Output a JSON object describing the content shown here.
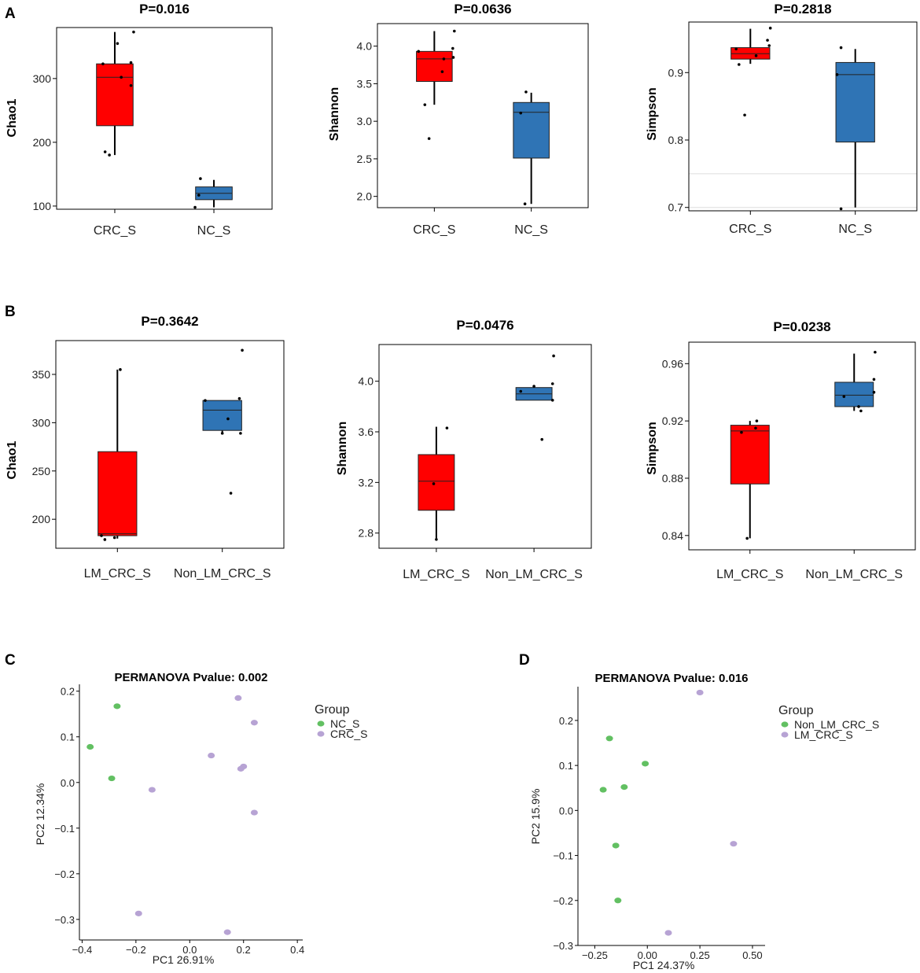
{
  "colors": {
    "red_box": "#ff0000",
    "blue_box": "#2f74b5",
    "green_point": "#62c062",
    "purple_point": "#b7a3d4"
  },
  "panel_letters": {
    "A": "A",
    "B": "B",
    "C": "C",
    "D": "D"
  },
  "chart_data": [
    {
      "id": "A1",
      "type": "box",
      "panel": "A",
      "title": "P=0.016",
      "ylabel": "Chao1",
      "categories": [
        "CRC_S",
        "NC_S"
      ],
      "ylim": [
        95,
        380
      ],
      "yticks": [
        100,
        200,
        300
      ],
      "boxes": [
        {
          "whisker_low": 180,
          "q1": 226,
          "median": 302,
          "q3": 323,
          "whisker_high": 373,
          "color": "red"
        },
        {
          "whisker_low": 98,
          "q1": 110,
          "median": 120,
          "q3": 130,
          "whisker_high": 141,
          "color": "blue"
        }
      ],
      "points": [
        {
          "cat": 0,
          "offset": -0.22,
          "y": 323
        },
        {
          "cat": 0,
          "offset": -0.18,
          "y": 185
        },
        {
          "cat": 0,
          "offset": -0.1,
          "y": 180
        },
        {
          "cat": 0,
          "offset": 0.05,
          "y": 355
        },
        {
          "cat": 0,
          "offset": 0.12,
          "y": 302
        },
        {
          "cat": 0,
          "offset": 0.3,
          "y": 325
        },
        {
          "cat": 0,
          "offset": 0.3,
          "y": 289
        },
        {
          "cat": 0,
          "offset": 0.35,
          "y": 373
        },
        {
          "cat": 1,
          "offset": -0.35,
          "y": 98
        },
        {
          "cat": 1,
          "offset": -0.28,
          "y": 117
        },
        {
          "cat": 1,
          "offset": -0.25,
          "y": 143
        }
      ]
    },
    {
      "id": "A2",
      "type": "box",
      "panel": "A",
      "title": "P=0.0636",
      "ylabel": "Shannon",
      "categories": [
        "CRC_S",
        "NC_S"
      ],
      "ylim": [
        1.85,
        4.3
      ],
      "yticks": [
        2.0,
        2.5,
        3.0,
        3.5,
        4.0
      ],
      "boxes": [
        {
          "whisker_low": 3.22,
          "q1": 3.53,
          "median": 3.83,
          "q3": 3.93,
          "whisker_high": 4.2,
          "color": "red"
        },
        {
          "whisker_low": 1.9,
          "q1": 2.51,
          "median": 3.12,
          "q3": 3.25,
          "whisker_high": 3.38,
          "color": "blue"
        }
      ],
      "points": [
        {
          "cat": 0,
          "offset": -0.3,
          "y": 3.93
        },
        {
          "cat": 0,
          "offset": -0.18,
          "y": 3.22
        },
        {
          "cat": 0,
          "offset": -0.1,
          "y": 2.77
        },
        {
          "cat": 0,
          "offset": 0.15,
          "y": 3.66
        },
        {
          "cat": 0,
          "offset": 0.18,
          "y": 3.83
        },
        {
          "cat": 0,
          "offset": 0.35,
          "y": 3.97
        },
        {
          "cat": 0,
          "offset": 0.36,
          "y": 3.85
        },
        {
          "cat": 0,
          "offset": 0.38,
          "y": 4.2
        },
        {
          "cat": 1,
          "offset": -0.2,
          "y": 3.11
        },
        {
          "cat": 1,
          "offset": -0.12,
          "y": 1.9
        },
        {
          "cat": 1,
          "offset": -0.1,
          "y": 3.39
        }
      ]
    },
    {
      "id": "A3",
      "type": "box",
      "panel": "A",
      "title": "P=0.2818",
      "ylabel": "Simpson",
      "categories": [
        "CRC_S",
        "NC_S"
      ],
      "ylim": [
        0.695,
        0.975
      ],
      "yticks": [
        0.7,
        0.8,
        0.9
      ],
      "gridlines": [
        0.75,
        0.7
      ],
      "boxes": [
        {
          "whisker_low": 0.913,
          "q1": 0.92,
          "median": 0.928,
          "q3": 0.937,
          "whisker_high": 0.965,
          "color": "red"
        },
        {
          "whisker_low": 0.7,
          "q1": 0.797,
          "median": 0.897,
          "q3": 0.915,
          "whisker_high": 0.935,
          "color": "blue"
        }
      ],
      "points": [
        {
          "cat": 0,
          "offset": -0.25,
          "y": 0.935
        },
        {
          "cat": 0,
          "offset": -0.2,
          "y": 0.912
        },
        {
          "cat": 0,
          "offset": -0.1,
          "y": 0.837
        },
        {
          "cat": 0,
          "offset": 0.1,
          "y": 0.925
        },
        {
          "cat": 0,
          "offset": 0.3,
          "y": 0.948
        },
        {
          "cat": 0,
          "offset": 0.33,
          "y": 0.94
        },
        {
          "cat": 0,
          "offset": 0.35,
          "y": 0.966
        },
        {
          "cat": 1,
          "offset": -0.32,
          "y": 0.897
        },
        {
          "cat": 1,
          "offset": -0.25,
          "y": 0.937
        },
        {
          "cat": 1,
          "offset": -0.25,
          "y": 0.698
        }
      ]
    },
    {
      "id": "B1",
      "type": "box",
      "panel": "B",
      "title": "P=0.3642",
      "ylabel": "Chao1",
      "categories": [
        "LM_CRC_S",
        "Non_LM_CRC_S"
      ],
      "ylim": [
        170,
        385
      ],
      "yticks": [
        200,
        250,
        300,
        350
      ],
      "boxes": [
        {
          "whisker_low": 180,
          "q1": 183,
          "median": 185,
          "q3": 270,
          "whisker_high": 355,
          "color": "red"
        },
        {
          "whisker_low": 288,
          "q1": 292,
          "median": 313,
          "q3": 323,
          "whisker_high": 323,
          "color": "blue"
        }
      ],
      "points": [
        {
          "cat": 0,
          "offset": -0.28,
          "y": 183
        },
        {
          "cat": 0,
          "offset": -0.22,
          "y": 179
        },
        {
          "cat": 0,
          "offset": -0.05,
          "y": 181
        },
        {
          "cat": 0,
          "offset": 0.05,
          "y": 355
        },
        {
          "cat": 1,
          "offset": -0.3,
          "y": 323
        },
        {
          "cat": 1,
          "offset": 0.0,
          "y": 289
        },
        {
          "cat": 1,
          "offset": 0.1,
          "y": 304
        },
        {
          "cat": 1,
          "offset": 0.15,
          "y": 227
        },
        {
          "cat": 1,
          "offset": 0.3,
          "y": 325
        },
        {
          "cat": 1,
          "offset": 0.32,
          "y": 289
        },
        {
          "cat": 1,
          "offset": 0.35,
          "y": 375
        }
      ]
    },
    {
      "id": "B2",
      "type": "box",
      "panel": "B",
      "title": "P=0.0476",
      "ylabel": "Shannon",
      "categories": [
        "LM_CRC_S",
        "Non_LM_CRC_S"
      ],
      "ylim": [
        2.68,
        4.29
      ],
      "yticks": [
        2.8,
        3.2,
        3.6,
        4.0
      ],
      "boxes": [
        {
          "whisker_low": 2.76,
          "q1": 2.98,
          "median": 3.21,
          "q3": 3.42,
          "whisker_high": 3.64,
          "color": "red"
        },
        {
          "whisker_low": 3.85,
          "q1": 3.85,
          "median": 3.9,
          "q3": 3.95,
          "whisker_high": 3.95,
          "color": "blue"
        }
      ],
      "points": [
        {
          "cat": 0,
          "offset": -0.05,
          "y": 3.19
        },
        {
          "cat": 0,
          "offset": 0.0,
          "y": 2.75
        },
        {
          "cat": 0,
          "offset": 0.2,
          "y": 3.63
        },
        {
          "cat": 1,
          "offset": -0.25,
          "y": 3.92
        },
        {
          "cat": 1,
          "offset": 0.0,
          "y": 3.96
        },
        {
          "cat": 1,
          "offset": 0.15,
          "y": 3.54
        },
        {
          "cat": 1,
          "offset": 0.35,
          "y": 3.98
        },
        {
          "cat": 1,
          "offset": 0.35,
          "y": 3.85
        },
        {
          "cat": 1,
          "offset": 0.37,
          "y": 4.2
        }
      ]
    },
    {
      "id": "B3",
      "type": "box",
      "panel": "B",
      "title": "P=0.0238",
      "ylabel": "Simpson",
      "categories": [
        "LM_CRC_S",
        "Non_LM_CRC_S"
      ],
      "ylim": [
        0.83,
        0.975
      ],
      "yticks": [
        0.84,
        0.88,
        0.92,
        0.96
      ],
      "boxes": [
        {
          "whisker_low": 0.838,
          "q1": 0.876,
          "median": 0.913,
          "q3": 0.917,
          "whisker_high": 0.92,
          "color": "red"
        },
        {
          "whisker_low": 0.927,
          "q1": 0.93,
          "median": 0.938,
          "q3": 0.947,
          "whisker_high": 0.967,
          "color": "blue"
        }
      ],
      "points": [
        {
          "cat": 0,
          "offset": -0.15,
          "y": 0.912
        },
        {
          "cat": 0,
          "offset": -0.05,
          "y": 0.838
        },
        {
          "cat": 0,
          "offset": 0.12,
          "y": 0.92
        },
        {
          "cat": 0,
          "offset": 0.1,
          "y": 0.915
        },
        {
          "cat": 1,
          "offset": -0.18,
          "y": 0.937
        },
        {
          "cat": 1,
          "offset": 0.08,
          "y": 0.93
        },
        {
          "cat": 1,
          "offset": 0.12,
          "y": 0.927
        },
        {
          "cat": 1,
          "offset": 0.35,
          "y": 0.949
        },
        {
          "cat": 1,
          "offset": 0.35,
          "y": 0.94
        },
        {
          "cat": 1,
          "offset": 0.37,
          "y": 0.968
        }
      ]
    },
    {
      "id": "C",
      "type": "scatter",
      "panel": "C",
      "title": "PERMANOVA Pvalue: 0.002",
      "xlabel": "PC1 26.91%",
      "ylabel": "PC2 12.34%",
      "xlim": [
        -0.41,
        0.42
      ],
      "ylim": [
        -0.345,
        0.215
      ],
      "xticks": [
        -0.4,
        -0.2,
        0.0,
        0.2,
        0.4
      ],
      "xtick_labels": [
        "−0.4",
        "−0.2",
        "0.0",
        "0.2",
        "0.4"
      ],
      "yticks": [
        -0.3,
        -0.2,
        -0.1,
        0.0,
        0.1,
        0.2
      ],
      "ytick_labels": [
        "−0.3",
        "−0.2",
        "−0.1",
        "0.0",
        "0.1",
        "0.2"
      ],
      "legend": {
        "title": "Group",
        "entries": [
          {
            "label": "NC_S",
            "color": "green"
          },
          {
            "label": "CRC_S",
            "color": "purple"
          }
        ]
      },
      "series": [
        {
          "name": "NC_S",
          "color": "green",
          "points": [
            [
              -0.27,
              0.167
            ],
            [
              -0.37,
              0.078
            ],
            [
              -0.29,
              0.009
            ]
          ]
        },
        {
          "name": "CRC_S",
          "color": "purple",
          "points": [
            [
              0.18,
              0.185
            ],
            [
              0.24,
              0.131
            ],
            [
              0.08,
              0.059
            ],
            [
              0.2,
              0.035
            ],
            [
              0.19,
              0.03
            ],
            [
              -0.14,
              -0.016
            ],
            [
              0.24,
              -0.066
            ],
            [
              -0.19,
              -0.287
            ],
            [
              0.14,
              -0.328
            ]
          ]
        }
      ]
    },
    {
      "id": "D",
      "type": "scatter",
      "panel": "D",
      "title": "PERMANOVA Pvalue: 0.016",
      "xlabel": "PC1 24.37%",
      "ylabel": "PC2 15.9%",
      "xlim": [
        -0.33,
        0.56
      ],
      "ylim": [
        -0.3,
        0.275
      ],
      "xticks": [
        -0.25,
        0.0,
        0.25,
        0.5
      ],
      "xtick_labels": [
        "−0.25",
        "0.00",
        "0.25",
        "0.50"
      ],
      "yticks": [
        -0.3,
        -0.2,
        -0.1,
        0.0,
        0.1,
        0.2
      ],
      "ytick_labels": [
        "−0.3",
        "−0.2",
        "−0.1",
        "0.0",
        "0.1",
        "0.2"
      ],
      "legend": {
        "title": "Group",
        "entries": [
          {
            "label": "Non_LM_CRC_S",
            "color": "green"
          },
          {
            "label": "LM_CRC_S",
            "color": "purple"
          }
        ]
      },
      "series": [
        {
          "name": "Non_LM_CRC_S",
          "color": "green",
          "points": [
            [
              -0.18,
              0.16
            ],
            [
              -0.01,
              0.104
            ],
            [
              -0.21,
              0.046
            ],
            [
              -0.11,
              0.052
            ],
            [
              -0.15,
              -0.078
            ],
            [
              -0.14,
              -0.2
            ]
          ]
        },
        {
          "name": "LM_CRC_S",
          "color": "purple",
          "points": [
            [
              0.25,
              0.262
            ],
            [
              0.41,
              -0.074
            ],
            [
              0.1,
              -0.272
            ]
          ]
        }
      ]
    }
  ]
}
